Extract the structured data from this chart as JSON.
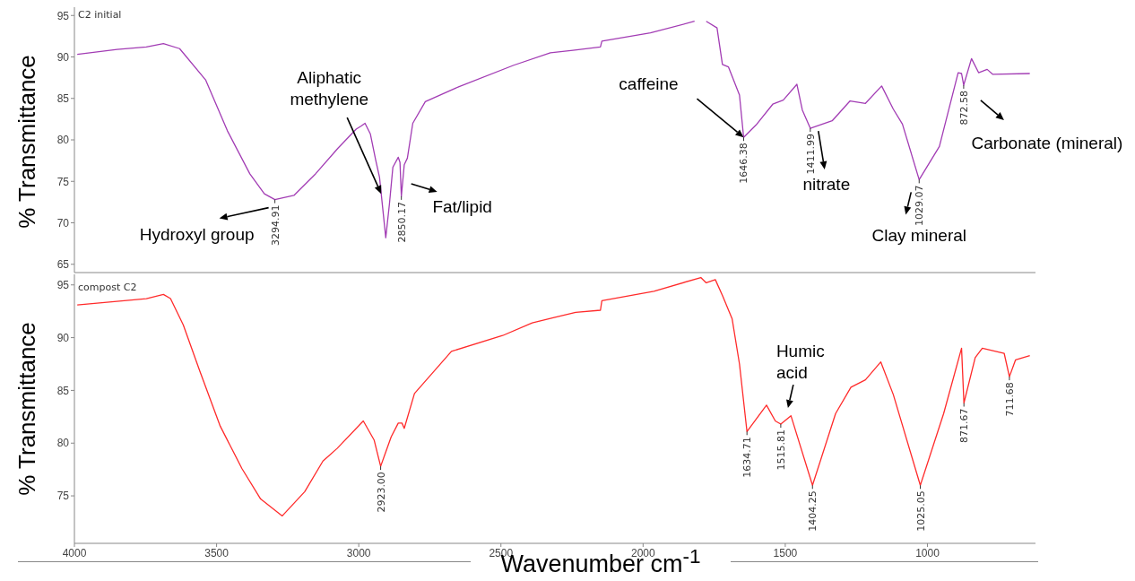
{
  "chart_data": [
    {
      "type": "line",
      "ylabel": "% Transmittance",
      "xlim": [
        4000,
        620
      ],
      "xticks": [
        4000,
        3500,
        3000,
        2500,
        2000,
        1500,
        1000
      ],
      "ylim": [
        64,
        96
      ],
      "yticks": [
        65,
        70,
        75,
        80,
        85,
        90,
        95
      ],
      "tick_labels": "y",
      "grid": false,
      "series": [
        {
          "color": "#a23cb4",
          "x": [
            3990,
            3850,
            3747,
            3687,
            3630,
            3538,
            3462,
            3383,
            3332,
            3294.91,
            3228,
            3152,
            3073,
            3009,
            2990,
            2978,
            2959,
            2940,
            2927,
            2905,
            2892,
            2880,
            2861,
            2855,
            2850.17,
            2840,
            2829,
            2810,
            2766,
            2649,
            2455,
            2326,
            2247,
            2150,
            2145,
            1974,
            1819,
            1800,
            1778,
            1740,
            1721,
            1700,
            1661,
            1646.38,
            1600,
            1544,
            1507,
            1459,
            1440,
            1411.99,
            1335,
            1272,
            1218,
            1161,
            1120,
            1088,
            1029.07,
            958,
            892,
            880,
            872.58,
            845,
            820,
            790,
            770,
            640
          ],
          "values": [
            90.3,
            90.9,
            91.2,
            91.6,
            91.0,
            87.2,
            81.1,
            75.9,
            73.5,
            72.8,
            73.3,
            75.9,
            79.0,
            81.3,
            81.7,
            82.0,
            80.7,
            77.5,
            75.5,
            68.2,
            72.3,
            76.7,
            77.9,
            77.3,
            73.2,
            77.0,
            77.8,
            82.0,
            84.6,
            86.4,
            89.0,
            90.5,
            90.8,
            91.2,
            91.9,
            92.9,
            94.3,
            null,
            94.3,
            93.5,
            89.1,
            88.8,
            85.4,
            80.3,
            81.9,
            84.3,
            84.8,
            86.7,
            83.6,
            81.4,
            82.3,
            84.7,
            84.4,
            86.5,
            83.7,
            81.9,
            75.2,
            79.2,
            88.1,
            88.0,
            86.6,
            89.8,
            88.1,
            88.5,
            87.9,
            88.0
          ]
        }
      ],
      "annotations": [
        "C2 initial",
        {
          "text": "3294.91",
          "x": 3294.91,
          "y": 72.8
        },
        {
          "text": "2850.17",
          "x": 2850.17,
          "y": 73.2
        },
        {
          "text": "1646.38",
          "x": 1646.38,
          "y": 80.3
        },
        {
          "text": "1411.99",
          "x": 1411.99,
          "y": 81.4
        },
        {
          "text": "1029.07",
          "x": 1029.07,
          "y": 75.2
        },
        {
          "text": "872.58",
          "x": 872.58,
          "y": 86.6
        },
        {
          "text": "Hydroxyl group",
          "x": 3294.91,
          "y": 72.8
        },
        {
          "text": "Aliphatic methylene",
          "x": 2921,
          "y": 73.5
        },
        {
          "text": "Fat/lipid",
          "x": 2850.17,
          "y": 73.2
        },
        {
          "text": "caffeine",
          "x": 1646.38,
          "y": 80.3
        },
        {
          "text": "nitrate",
          "x": 1411.99,
          "y": 81.4
        },
        {
          "text": "Clay mineral",
          "x": 1029.07,
          "y": 75.2
        },
        {
          "text": "Carbonate (mineral)",
          "x": 872.58,
          "y": 86.6
        }
      ]
    },
    {
      "type": "line",
      "ylabel": "% Transmittance",
      "xlabel": "Wavenumber cm$^{-1}$",
      "xlim": [
        4000,
        620
      ],
      "xticks": [
        4000,
        3500,
        3000,
        2500,
        2000,
        1500,
        1000
      ],
      "ylim": [
        70.5,
        96
      ],
      "yticks": [
        75,
        80,
        85,
        90,
        95
      ],
      "grid": false,
      "series": [
        {
          "color": "#ff2a2a",
          "x": [
            3990,
            3747,
            3687,
            3662,
            3617,
            3560,
            3487,
            3411,
            3345,
            3269,
            3190,
            3126,
            3076,
            2984,
            2946,
            2923.0,
            2886,
            2861,
            2848,
            2840,
            2804,
            2674,
            2494,
            2390,
            2313,
            2237,
            2150,
            2145,
            1962,
            1797,
            1778,
            1746,
            1721,
            1687,
            1661,
            1634.71,
            1566,
            1535,
            1515.81,
            1480,
            1404.25,
            1323,
            1269,
            1218,
            1164,
            1120,
            1025.05,
            943,
            880,
            871.67,
            832,
            807,
            730,
            711.68,
            690,
            640
          ],
          "values": [
            93.1,
            93.7,
            94.1,
            93.7,
            91.2,
            86.9,
            81.6,
            77.6,
            74.7,
            73.1,
            75.4,
            78.3,
            79.5,
            82.1,
            80.3,
            77.8,
            80.6,
            81.9,
            81.9,
            81.4,
            84.7,
            88.7,
            90.2,
            91.4,
            91.9,
            92.4,
            92.6,
            93.5,
            94.4,
            95.7,
            95.2,
            95.5,
            94.0,
            91.8,
            87.5,
            81.1,
            83.6,
            82.1,
            81.8,
            82.6,
            76.0,
            82.8,
            85.3,
            86.0,
            87.7,
            84.6,
            76.0,
            82.8,
            89.0,
            83.8,
            88.1,
            89.0,
            88.5,
            86.3,
            87.9,
            88.3
          ]
        }
      ],
      "annotations": [
        "compost C2",
        {
          "text": "2923.00",
          "x": 2923.0,
          "y": 77.8
        },
        {
          "text": "1634.71",
          "x": 1634.71,
          "y": 81.1
        },
        {
          "text": "1515.81",
          "x": 1515.81,
          "y": 81.8
        },
        {
          "text": "1404.25",
          "x": 1404.25,
          "y": 76.0
        },
        {
          "text": "1025.05",
          "x": 1025.05,
          "y": 76.0
        },
        {
          "text": "871.67",
          "x": 871.67,
          "y": 83.8
        },
        {
          "text": "711.68",
          "x": 711.68,
          "y": 86.3
        },
        {
          "text": "Humic acid",
          "x": 1515.81,
          "y": 81.8
        }
      ]
    }
  ]
}
